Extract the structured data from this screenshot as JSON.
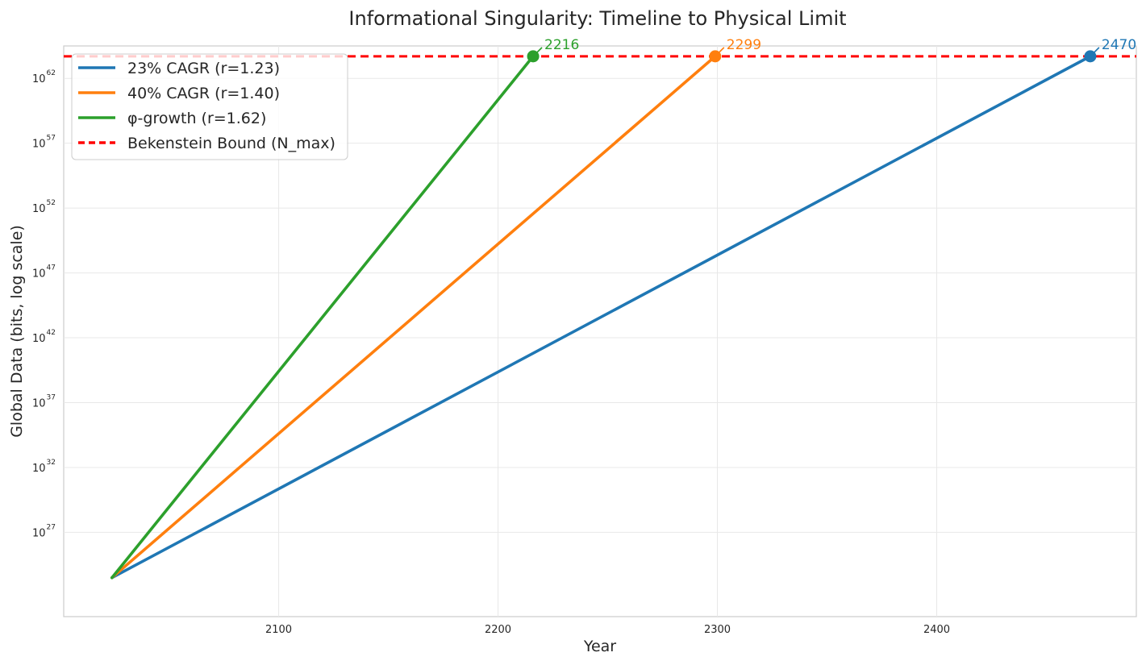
{
  "chart_data": {
    "type": "line",
    "title": "Informational Singularity: Timeline to Physical Limit",
    "xlabel": "Year",
    "ylabel": "Global Data (bits, log scale)",
    "yscale": "log",
    "grid": true,
    "legend_position": "upper-left",
    "xlim": [
      2002,
      2491
    ],
    "ylim_log10": [
      20.5,
      64.5
    ],
    "xticks": [
      2100,
      2200,
      2300,
      2400
    ],
    "yticks_log10": [
      27,
      32,
      37,
      42,
      47,
      52,
      57,
      62
    ],
    "series": [
      {
        "name": "23% CAGR (r=1.23)",
        "color": "#1f77b4",
        "x": [
          2024,
          2470
        ],
        "y_log10": [
          23.5,
          63.7
        ],
        "endpoint_label": "2470"
      },
      {
        "name": "40% CAGR (r=1.40)",
        "color": "#ff7f0e",
        "x": [
          2024,
          2299
        ],
        "y_log10": [
          23.5,
          63.7
        ],
        "endpoint_label": "2299"
      },
      {
        "name": "φ-growth (r=1.62)",
        "color": "#2ca02c",
        "x": [
          2024,
          2216
        ],
        "y_log10": [
          23.5,
          63.7
        ],
        "endpoint_label": "2216"
      }
    ],
    "reference_line": {
      "name": "Bekenstein Bound (N_max)",
      "color": "#ff0000",
      "style": "dashed",
      "y_log10": 63.7
    }
  }
}
